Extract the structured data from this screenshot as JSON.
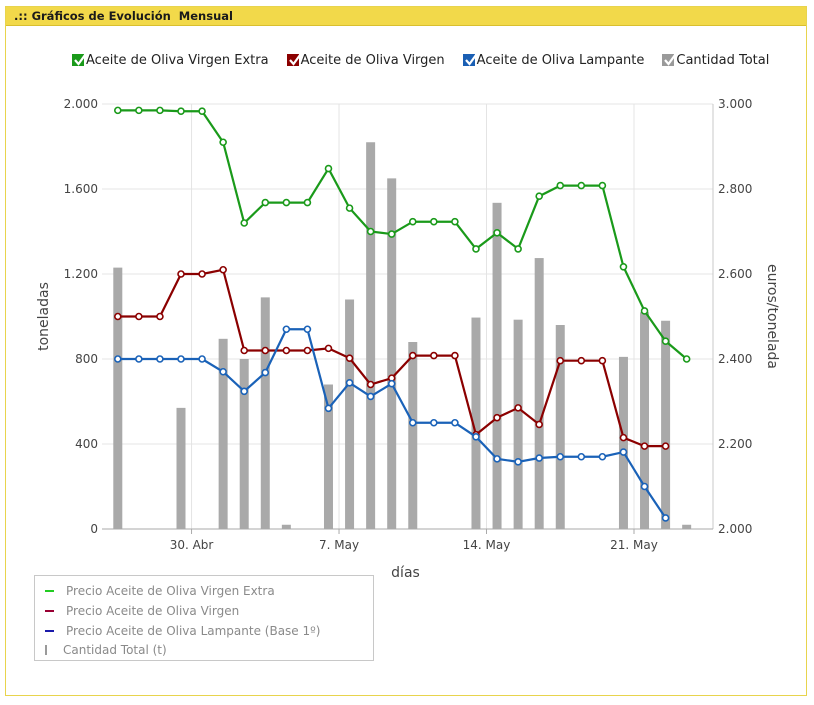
{
  "panel": {
    "title": ".:: Gráficos de Evolución  Mensual"
  },
  "legend_top": [
    {
      "label": "Aceite de Oliva Virgen Extra",
      "color": "#1a9a1a"
    },
    {
      "label": "Aceite de Oliva Virgen",
      "color": "#8b0000"
    },
    {
      "label": "Aceite de Oliva Lampante",
      "color": "#1a5fb4"
    },
    {
      "label": "Cantidad Total",
      "color": "#9a9a9a"
    }
  ],
  "legend_bottom": [
    {
      "label": "Precio Aceite de Oliva Virgen Extra",
      "color": "#22cc22",
      "kind": "line"
    },
    {
      "label": "Precio Aceite de Oliva Virgen",
      "color": "#990033",
      "kind": "line"
    },
    {
      "label": "Precio Aceite de Oliva Lampante (Base 1º)",
      "color": "#1a1aaa",
      "kind": "line"
    },
    {
      "label": "Cantidad Total (t)",
      "color": "#9a9a9a",
      "kind": "bar"
    }
  ],
  "chart_data": {
    "type": "bar+line",
    "xlabel": "días",
    "ylabel_left": "toneladas",
    "ylabel_right": "euros/tonelada",
    "left_axis": {
      "min": 0,
      "max": 2000,
      "ticks": [
        "0",
        "400",
        "800",
        "1.200",
        "1.600",
        "2.000"
      ],
      "tick_values": [
        0,
        400,
        800,
        1200,
        1600,
        2000
      ]
    },
    "right_axis": {
      "min": 2000,
      "max": 3000,
      "ticks": [
        "2.000",
        "2.200",
        "2.400",
        "2.600",
        "2.800",
        "3.000"
      ],
      "tick_values": [
        2000,
        2200,
        2400,
        2600,
        2800,
        3000
      ]
    },
    "x_axis": {
      "first_day": 0,
      "last_day": 27,
      "labels": [
        {
          "day": 3,
          "label": "30. Abr"
        },
        {
          "day": 10,
          "label": "7. May"
        },
        {
          "day": 17,
          "label": "14. May"
        },
        {
          "day": 24,
          "label": "21. May"
        }
      ]
    },
    "days": [
      0,
      3,
      5,
      6,
      7,
      8,
      10,
      11,
      12,
      13,
      14,
      17,
      18,
      19,
      20,
      21,
      24,
      25,
      26,
      27
    ],
    "bars": [
      {
        "name": "Cantidad Total (t)",
        "axis": "left",
        "color": "#a9a9a9",
        "points": [
          [
            0,
            1230
          ],
          [
            3,
            570
          ],
          [
            5,
            895
          ],
          [
            6,
            800
          ],
          [
            7,
            1090
          ],
          [
            8,
            20
          ],
          [
            10,
            680
          ],
          [
            11,
            1080
          ],
          [
            12,
            1820
          ],
          [
            13,
            1650
          ],
          [
            14,
            880
          ],
          [
            17,
            995
          ],
          [
            18,
            1535
          ],
          [
            19,
            985
          ],
          [
            20,
            1275
          ],
          [
            21,
            960
          ],
          [
            24,
            810
          ],
          [
            25,
            1020
          ],
          [
            26,
            980
          ],
          [
            27,
            20
          ]
        ]
      }
    ],
    "series": [
      {
        "name": "Aceite de Oliva Virgen Extra",
        "axis": "right",
        "color": "#1a9a1a",
        "points": [
          [
            0,
            2985
          ],
          [
            1,
            2985
          ],
          [
            2,
            2985
          ],
          [
            3,
            2983
          ],
          [
            4,
            2983
          ],
          [
            5,
            2910
          ],
          [
            6,
            2720
          ],
          [
            7,
            2768
          ],
          [
            8,
            2768
          ],
          [
            9,
            2768
          ],
          [
            10,
            2848
          ],
          [
            11,
            2755
          ],
          [
            12,
            2700
          ],
          [
            13,
            2694
          ],
          [
            14,
            2723
          ],
          [
            15,
            2723
          ],
          [
            16,
            2723
          ],
          [
            17,
            2659
          ],
          [
            18,
            2697
          ],
          [
            19,
            2659
          ],
          [
            20,
            2783
          ],
          [
            21,
            2808
          ],
          [
            22,
            2808
          ],
          [
            23,
            2808
          ],
          [
            24,
            2617
          ],
          [
            25,
            2513
          ],
          [
            26,
            2442
          ],
          [
            27,
            2400
          ]
        ]
      },
      {
        "name": "Aceite de Oliva Virgen",
        "axis": "right",
        "color": "#8b0000",
        "points": [
          [
            0,
            2500
          ],
          [
            1,
            2500
          ],
          [
            2,
            2500
          ],
          [
            3,
            2600
          ],
          [
            4,
            2600
          ],
          [
            5,
            2610
          ],
          [
            6,
            2420
          ],
          [
            7,
            2420
          ],
          [
            8,
            2420
          ],
          [
            9,
            2420
          ],
          [
            10,
            2425
          ],
          [
            11,
            2402
          ],
          [
            12,
            2340
          ],
          [
            13,
            2355
          ],
          [
            14,
            2408
          ],
          [
            15,
            2408
          ],
          [
            16,
            2408
          ],
          [
            17,
            2222
          ],
          [
            18,
            2262
          ],
          [
            19,
            2285
          ],
          [
            20,
            2246
          ],
          [
            21,
            2396
          ],
          [
            22,
            2396
          ],
          [
            23,
            2396
          ],
          [
            24,
            2215
          ],
          [
            25,
            2195
          ],
          [
            26,
            2195
          ]
        ]
      },
      {
        "name": "Aceite de Oliva Lampante",
        "axis": "right",
        "color": "#1a62b8",
        "points": [
          [
            0,
            2400
          ],
          [
            1,
            2400
          ],
          [
            2,
            2400
          ],
          [
            3,
            2400
          ],
          [
            4,
            2400
          ],
          [
            5,
            2370
          ],
          [
            6,
            2324
          ],
          [
            7,
            2368
          ],
          [
            8,
            2470
          ],
          [
            9,
            2470
          ],
          [
            10,
            2284
          ],
          [
            11,
            2344
          ],
          [
            12,
            2312
          ],
          [
            13,
            2342
          ],
          [
            14,
            2250
          ],
          [
            15,
            2250
          ],
          [
            16,
            2250
          ],
          [
            17,
            2217
          ],
          [
            18,
            2165
          ],
          [
            19,
            2158
          ],
          [
            20,
            2167
          ],
          [
            21,
            2170
          ],
          [
            22,
            2170
          ],
          [
            23,
            2170
          ],
          [
            24,
            2181
          ],
          [
            25,
            2100
          ],
          [
            26,
            2026
          ]
        ]
      }
    ]
  }
}
